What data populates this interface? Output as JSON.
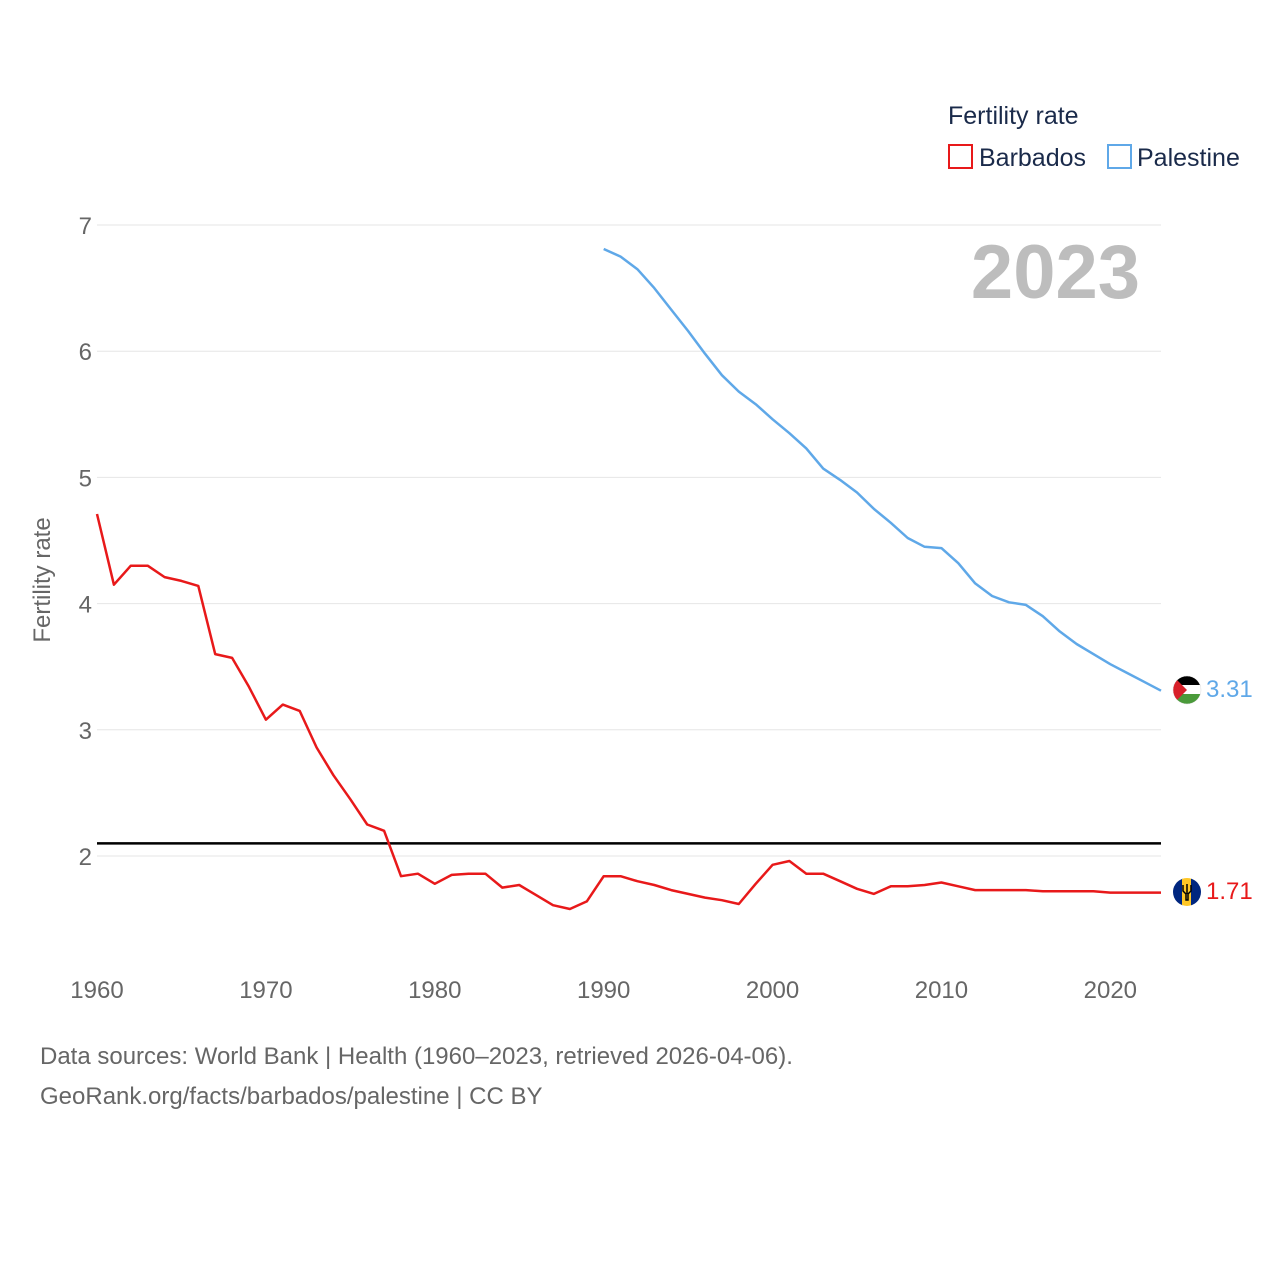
{
  "chart_data": {
    "type": "line",
    "ylabel": "Fertility rate",
    "ylim": [
      1,
      7
    ],
    "yticks": [
      2,
      3,
      4,
      5,
      6,
      7
    ],
    "xlim": [
      1960,
      2023
    ],
    "xticks": [
      1960,
      1970,
      1980,
      1990,
      2000,
      2010,
      2020
    ],
    "year_label": "2023",
    "legend": {
      "title": "Fertility rate",
      "position": "top-right"
    },
    "reference_line": 2.1,
    "series": [
      {
        "name": "Barbados",
        "color": "#e8191a",
        "flag": "barbados-flag-icon",
        "end_label": "1.71",
        "x": [
          1960,
          1961,
          1962,
          1963,
          1964,
          1965,
          1966,
          1967,
          1968,
          1969,
          1970,
          1971,
          1972,
          1973,
          1974,
          1975,
          1976,
          1977,
          1978,
          1979,
          1980,
          1981,
          1982,
          1983,
          1984,
          1985,
          1986,
          1987,
          1988,
          1989,
          1990,
          1991,
          1992,
          1993,
          1994,
          1995,
          1996,
          1997,
          1998,
          1999,
          2000,
          2001,
          2002,
          2003,
          2004,
          2005,
          2006,
          2007,
          2008,
          2009,
          2010,
          2011,
          2012,
          2013,
          2014,
          2015,
          2016,
          2017,
          2018,
          2019,
          2020,
          2021,
          2022,
          2023
        ],
        "values": [
          4.71,
          4.15,
          4.3,
          4.3,
          4.21,
          4.18,
          4.14,
          3.6,
          3.57,
          3.34,
          3.08,
          3.2,
          3.15,
          2.86,
          2.64,
          2.45,
          2.25,
          2.2,
          1.84,
          1.86,
          1.78,
          1.85,
          1.86,
          1.86,
          1.75,
          1.77,
          1.69,
          1.61,
          1.58,
          1.64,
          1.84,
          1.84,
          1.8,
          1.77,
          1.73,
          1.7,
          1.67,
          1.65,
          1.62,
          1.78,
          1.93,
          1.96,
          1.86,
          1.86,
          1.8,
          1.74,
          1.7,
          1.76,
          1.76,
          1.77,
          1.79,
          1.76,
          1.73,
          1.73,
          1.73,
          1.73,
          1.72,
          1.72,
          1.72,
          1.72,
          1.71,
          1.71,
          1.71,
          1.71
        ]
      },
      {
        "name": "Palestine",
        "color": "#5fa8e8",
        "flag": "palestine-flag-icon",
        "end_label": "3.31",
        "x": [
          1990,
          1991,
          1992,
          1993,
          1994,
          1995,
          1996,
          1997,
          1998,
          1999,
          2000,
          2001,
          2002,
          2003,
          2004,
          2005,
          2006,
          2007,
          2008,
          2009,
          2010,
          2011,
          2012,
          2013,
          2014,
          2015,
          2016,
          2017,
          2018,
          2019,
          2020,
          2021,
          2022,
          2023
        ],
        "values": [
          6.81,
          6.75,
          6.65,
          6.5,
          6.33,
          6.16,
          5.98,
          5.81,
          5.68,
          5.58,
          5.46,
          5.35,
          5.23,
          5.07,
          4.98,
          4.88,
          4.75,
          4.64,
          4.52,
          4.45,
          4.44,
          4.32,
          4.16,
          4.06,
          4.01,
          3.99,
          3.9,
          3.78,
          3.68,
          3.6,
          3.52,
          3.45,
          3.38,
          3.31
        ]
      }
    ]
  },
  "footer": {
    "line1": "Data sources: World Bank | Health (1960–2023, retrieved 2026-04-06).",
    "line2": "GeoRank.org/facts/barbados/palestine | CC BY"
  }
}
